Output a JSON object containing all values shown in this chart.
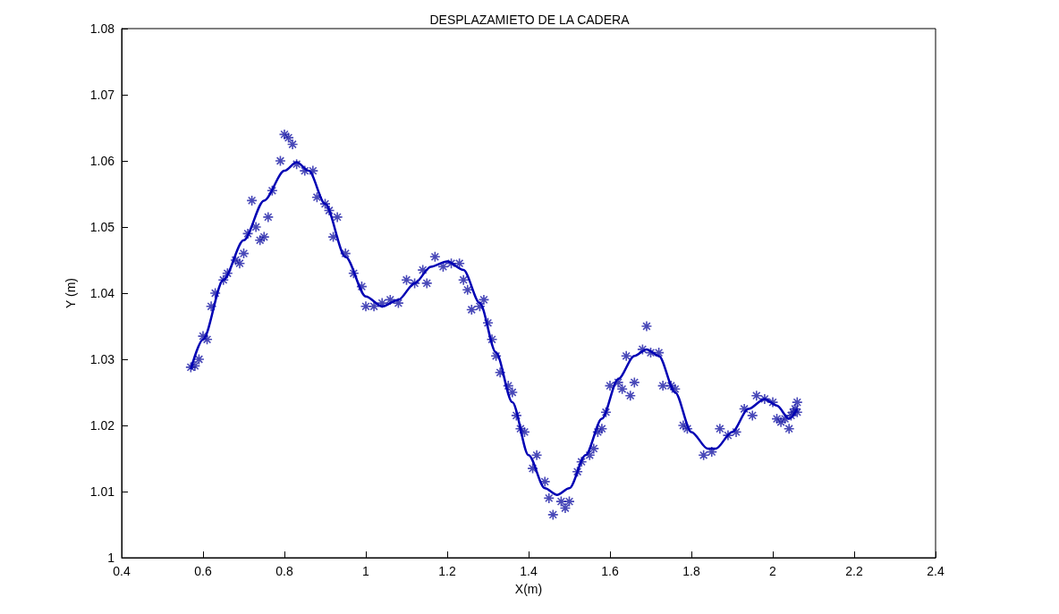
{
  "chart_data": {
    "type": "scatter",
    "title": "DESPLAZAMIETO DE LA CADERA",
    "xlabel": "X(m)",
    "ylabel": "Y (m)",
    "xlim": [
      0.4,
      2.4
    ],
    "xticks": [
      0.4,
      0.6,
      0.8,
      1,
      1.2,
      1.4,
      1.6,
      1.8,
      2,
      2.2,
      2.4
    ],
    "ylim": [
      1,
      1.08
    ],
    "yticks": [
      1,
      1.01,
      1.02,
      1.03,
      1.04,
      1.05,
      1.06,
      1.07,
      1.08
    ],
    "grid": false,
    "series": [
      {
        "marker": "cross",
        "color": "#1a1aa6",
        "x": [
          0.57,
          0.58,
          0.59,
          0.6,
          0.61,
          0.62,
          0.63,
          0.65,
          0.66,
          0.68,
          0.69,
          0.7,
          0.71,
          0.72,
          0.73,
          0.74,
          0.75,
          0.76,
          0.77,
          0.79,
          0.8,
          0.81,
          0.82,
          0.83,
          0.85,
          0.87,
          0.88,
          0.9,
          0.91,
          0.92,
          0.93,
          0.95,
          0.97,
          0.99,
          1,
          1.02,
          1.04,
          1.06,
          1.08,
          1.1,
          1.12,
          1.14,
          1.15,
          1.17,
          1.19,
          1.21,
          1.23,
          1.24,
          1.25,
          1.26,
          1.28,
          1.29,
          1.3,
          1.31,
          1.32,
          1.33,
          1.35,
          1.36,
          1.37,
          1.38,
          1.39,
          1.41,
          1.42,
          1.44,
          1.45,
          1.46,
          1.48,
          1.49,
          1.5,
          1.52,
          1.53,
          1.55,
          1.56,
          1.57,
          1.58,
          1.59,
          1.6,
          1.62,
          1.63,
          1.64,
          1.65,
          1.66,
          1.68,
          1.69,
          1.7,
          1.72,
          1.73,
          1.75,
          1.76,
          1.78,
          1.79,
          1.83,
          1.85,
          1.87,
          1.89,
          1.91,
          1.93,
          1.95,
          1.96,
          1.98,
          2,
          2.01,
          2.02,
          2.03,
          2.04,
          2.045,
          2.05,
          2.055,
          2.06,
          2.06
        ],
        "values": [
          1.0288,
          1.029,
          1.03,
          1.0335,
          1.033,
          1.038,
          1.04,
          1.042,
          1.043,
          1.045,
          1.0445,
          1.046,
          1.049,
          1.054,
          1.05,
          1.048,
          1.0485,
          1.0515,
          1.0555,
          1.06,
          1.064,
          1.0635,
          1.0625,
          1.0595,
          1.0585,
          1.0585,
          1.0545,
          1.0535,
          1.0525,
          1.0485,
          1.0515,
          1.046,
          1.043,
          1.041,
          1.038,
          1.038,
          1.0385,
          1.039,
          1.0385,
          1.042,
          1.0415,
          1.0435,
          1.0415,
          1.0455,
          1.044,
          1.0445,
          1.0445,
          1.042,
          1.0405,
          1.0375,
          1.038,
          1.039,
          1.0355,
          1.033,
          1.0305,
          1.028,
          1.026,
          1.025,
          1.0215,
          1.0195,
          1.019,
          1.0135,
          1.0155,
          1.0115,
          1.009,
          1.0065,
          1.0085,
          1.0075,
          1.0085,
          1.013,
          1.0145,
          1.0155,
          1.0165,
          1.019,
          1.0195,
          1.022,
          1.026,
          1.0265,
          1.0255,
          1.0305,
          1.0245,
          1.0265,
          1.0315,
          1.035,
          1.031,
          1.031,
          1.026,
          1.026,
          1.0255,
          1.02,
          1.0195,
          1.0155,
          1.016,
          1.0195,
          1.0185,
          1.019,
          1.0225,
          1.0215,
          1.0245,
          1.024,
          1.0235,
          1.021,
          1.0205,
          1.021,
          1.0195,
          1.0215,
          1.022,
          1.0225,
          1.0235,
          1.022
        ]
      },
      {
        "type": "line",
        "marker": "none",
        "color": "#0000b4",
        "x": [
          0.57,
          0.6,
          0.65,
          0.7,
          0.75,
          0.8,
          0.83,
          0.86,
          0.9,
          0.95,
          1,
          1.04,
          1.08,
          1.12,
          1.16,
          1.2,
          1.24,
          1.28,
          1.32,
          1.36,
          1.4,
          1.44,
          1.47,
          1.5,
          1.54,
          1.58,
          1.62,
          1.66,
          1.69,
          1.72,
          1.76,
          1.8,
          1.84,
          1.86,
          1.9,
          1.94,
          1.98,
          2.01,
          2.04,
          2.06
        ],
        "values": [
          1.0285,
          1.033,
          1.042,
          1.048,
          1.054,
          1.0585,
          1.0598,
          1.0585,
          1.0535,
          1.0455,
          1.0395,
          1.038,
          1.039,
          1.0415,
          1.044,
          1.0448,
          1.0435,
          1.0385,
          1.031,
          1.0235,
          1.0155,
          1.0105,
          1.0095,
          1.0105,
          1.0155,
          1.021,
          1.027,
          1.0305,
          1.0315,
          1.0305,
          1.025,
          1.019,
          1.0165,
          1.0165,
          1.019,
          1.0225,
          1.024,
          1.023,
          1.021,
          1.0225
        ]
      }
    ]
  }
}
